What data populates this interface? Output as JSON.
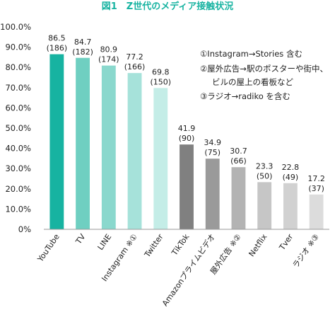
{
  "chart_data": {
    "type": "bar",
    "title": "図1　Z世代のメディア接触状況",
    "categories": [
      "YouTube",
      "TV",
      "LINE",
      "Instagram ※①",
      "Twitter",
      "TikTok",
      "Amazonプライムビデオ",
      "屋外広告 ※②",
      "Netflix",
      "Tver",
      "ラジオ ※③"
    ],
    "values": [
      86.5,
      84.7,
      80.9,
      77.2,
      69.8,
      41.9,
      34.9,
      30.7,
      23.3,
      22.8,
      17.2
    ],
    "counts": [
      "(186)",
      "(182)",
      "(174)",
      "(166)",
      "(150)",
      "(90)",
      "(75)",
      "(66)",
      "(50)",
      "(49)",
      "(37)"
    ],
    "value_labels": [
      "86.5",
      "84.7",
      "80.9",
      "77.2",
      "69.8",
      "41.9",
      "34.9",
      "30.7",
      "23.3",
      "22.8",
      "17.2"
    ],
    "colors": [
      "#17b3a1",
      "#6fcfc1",
      "#8ad8cd",
      "#a6e2da",
      "#c4ede7",
      "#808080",
      "#9a9a9a",
      "#b3b3b3",
      "#c6c6c6",
      "#d1d1d1",
      "#dcdcdc"
    ],
    "ylim": [
      0,
      100
    ],
    "yticks": [
      "0%",
      "10.0%",
      "20.0%",
      "30.0%",
      "40.0%",
      "50.0%",
      "60.0%",
      "70.0%",
      "80.0%",
      "90.0%",
      "100.0%"
    ],
    "notes": [
      "①Instagram→Stories 含む",
      "②屋外広告→駅のポスターや街中、",
      "ビルの屋上の看板など",
      "③ラジオ→radiko を含む"
    ],
    "title_color": "#17b3a1",
    "grid": false
  }
}
